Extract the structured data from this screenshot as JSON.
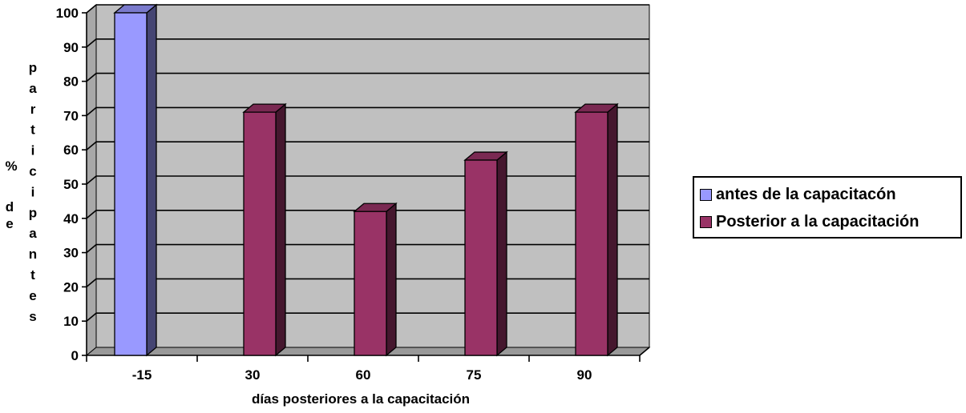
{
  "chart_data": {
    "type": "bar",
    "categories": [
      "-15",
      "30",
      "60",
      "75",
      "90"
    ],
    "series": [
      {
        "name": "antes de la capacitacón",
        "color": "#9999ff",
        "values": [
          100,
          null,
          null,
          null,
          null
        ]
      },
      {
        "name": "Posterior a la capacitación",
        "color": "#993366",
        "values": [
          null,
          71,
          42,
          57,
          71
        ]
      }
    ],
    "xlabel": "días posteriores a la capacitación",
    "ylabel_main": "% de",
    "ylabel_vertical": "participantes",
    "ylim": [
      0,
      100
    ],
    "yticks": [
      0,
      10,
      20,
      30,
      40,
      50,
      60,
      70,
      80,
      90,
      100
    ],
    "grid": true,
    "legend_position": "right",
    "plot_background": "#c0c0c0",
    "three_d": true
  }
}
